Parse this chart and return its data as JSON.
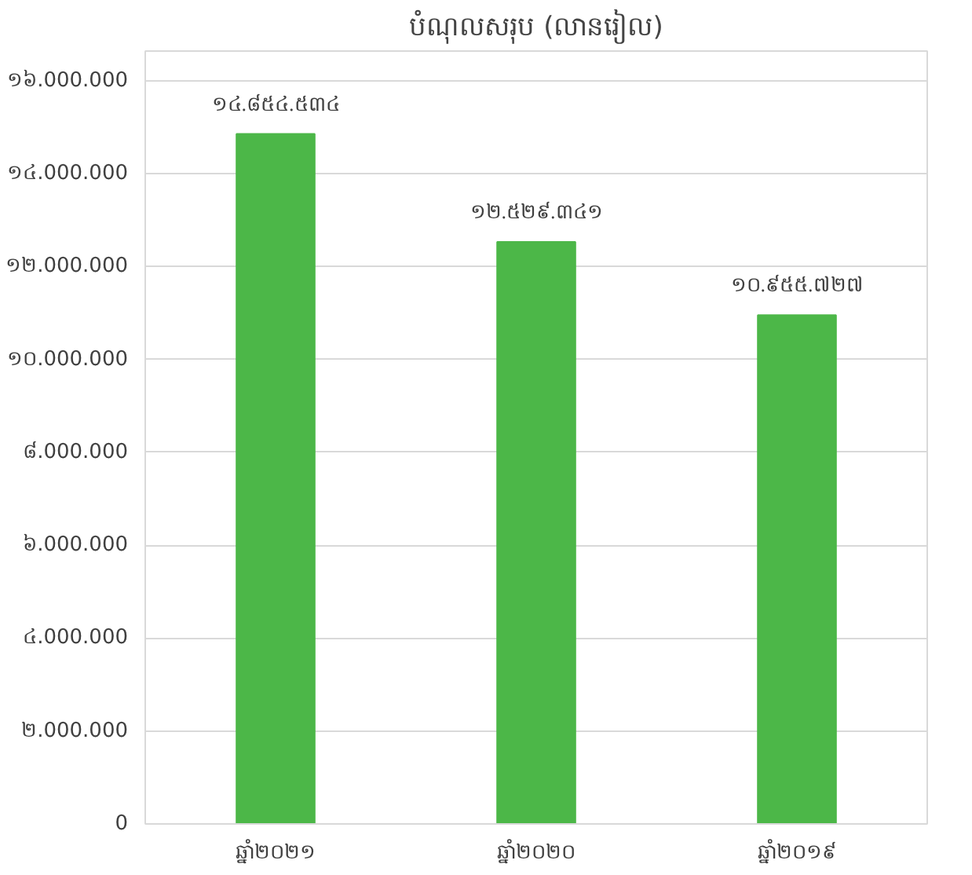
{
  "chart_data": {
    "type": "bar",
    "title": "បំណុលសរុប (លានរៀល)",
    "categories": [
      "ឆ្នាំ២០២១",
      "ឆ្នាំ២០២០",
      "ឆ្នាំ២០១៩"
    ],
    "values": [
      14854534,
      12529341,
      10955727
    ],
    "color": "#4cb748",
    "value_labels": [
      "១៤.៨៥៤.៥៣៤",
      "១២.៥២៩.៣៤១",
      "១០.៩៥៥.៧២៧"
    ],
    "ylim": [
      0,
      16000000
    ],
    "yticks": [
      {
        "value": 0,
        "label": "0"
      },
      {
        "value": 2000000,
        "label": "២.000.000"
      },
      {
        "value": 4000000,
        "label": "៤.000.000"
      },
      {
        "value": 6000000,
        "label": "៦.000.000"
      },
      {
        "value": 8000000,
        "label": "៨.000.000"
      },
      {
        "value": 10000000,
        "label": "១០.000.000"
      },
      {
        "value": 12000000,
        "label": "១២.000.000"
      },
      {
        "value": 14000000,
        "label": "១៤.000.000"
      },
      {
        "value": 16000000,
        "label": "១៦.000.000"
      }
    ],
    "grid": "y",
    "legend": false
  }
}
